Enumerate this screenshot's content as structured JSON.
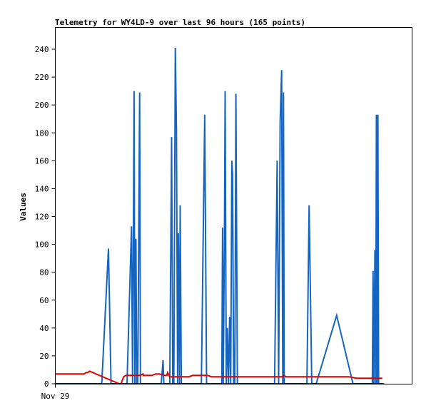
{
  "chart_data": {
    "type": "line",
    "title": "Telemetry for WY4LD-9 over last 96 hours (165 points)",
    "xlabel": "",
    "ylabel": "Values",
    "x_tick_labels": [
      "Nov 29"
    ],
    "y_ticks": [
      0,
      20,
      40,
      60,
      80,
      100,
      120,
      140,
      160,
      180,
      200,
      220,
      240
    ],
    "xlim": [
      0,
      96
    ],
    "ylim": [
      0,
      255
    ],
    "grid": false,
    "legend": "none",
    "series": [
      {
        "color": "#1565c0",
        "x": [
          0,
          12.5,
          14.3,
          15.0,
          15.3,
          16.4,
          19.3,
          20.5,
          20.8,
          21.0,
          21.2,
          21.4,
          21.7,
          21.9,
          22.2,
          22.7,
          22.9,
          23.2,
          23.6,
          28.5,
          28.8,
          29.0,
          29.2,
          30.8,
          31.3,
          31.6,
          31.9,
          32.3,
          32.6,
          32.9,
          33.1,
          33.4,
          33.6,
          33.9,
          34.0,
          34.2,
          34.5,
          34.9,
          39.3,
          40.2,
          40.7,
          41.1,
          41.4,
          41.7,
          42.1,
          44.8,
          45.0,
          45.2,
          45.5,
          45.7,
          46.0,
          46.3,
          46.6,
          46.9,
          47.2,
          47.5,
          47.7,
          48.0,
          48.3,
          48.6,
          49.0,
          49.3,
          49.6,
          49.9,
          50.3,
          50.6,
          51.0,
          59.0,
          59.7,
          60.1,
          60.5,
          60.9,
          61.2,
          61.4,
          61.6,
          62.0,
          62.3,
          62.6,
          62.9,
          63.3,
          67.7,
          68.3,
          69.0,
          69.6,
          70.2,
          75.7,
          80.1,
          85.0,
          85.3,
          85.5,
          85.7,
          86.0,
          86.2,
          86.4,
          86.6,
          86.8,
          87.0,
          87.3,
          87.6,
          87.8,
          88.1
        ],
        "values": [
          0,
          0,
          97,
          0,
          0,
          0,
          0,
          113,
          0,
          104,
          210,
          0,
          104,
          0,
          0,
          209,
          0,
          0,
          0,
          0,
          10,
          17,
          0,
          0,
          177,
          0,
          0,
          241,
          181,
          0,
          108,
          0,
          128,
          0,
          0,
          0,
          0,
          0,
          0,
          193,
          0,
          0,
          0,
          0,
          0,
          0,
          112,
          0,
          104,
          210,
          0,
          40,
          0,
          48,
          0,
          160,
          150,
          0,
          0,
          208,
          0,
          0,
          0,
          0,
          0,
          0,
          0,
          0,
          160,
          0,
          188,
          225,
          0,
          209,
          0,
          0,
          0,
          0,
          0,
          0,
          0,
          128,
          0,
          0,
          0,
          49,
          0,
          0,
          0,
          81,
          0,
          96,
          0,
          193,
          0,
          193,
          0,
          0,
          0,
          0,
          0
        ]
      },
      {
        "color": "#e00000",
        "x": [
          0,
          7.3,
          7.7,
          8.3,
          8.7,
          9.2,
          17.2,
          17.7,
          18.1,
          18.4,
          19.0,
          22.0,
          22.9,
          23.6,
          23.7,
          24.2,
          26.0,
          27.0,
          28.0,
          29.5,
          30.0,
          30.2,
          30.4,
          30.6,
          30.8,
          31.0,
          32.0,
          34.0,
          36.0,
          37.0,
          37.3,
          38.0,
          40.0,
          41.0,
          42.0,
          44.0,
          46.0,
          48.0,
          50.0,
          52.0,
          55.0,
          58.0,
          60.0,
          61.0,
          61.6,
          62.0,
          63.0,
          66.0,
          70.0,
          73.0,
          75.0,
          77.0,
          79.0,
          81.0,
          82.0,
          83.0,
          84.0,
          86.0,
          88.0
        ],
        "values": [
          7,
          7,
          7,
          8,
          8,
          9,
          0,
          0,
          3,
          5,
          6,
          6,
          6,
          7,
          6,
          6,
          6,
          7,
          7,
          6,
          6,
          8,
          7,
          6,
          5,
          5,
          5,
          5,
          5,
          6,
          6,
          6,
          6,
          6,
          5,
          5,
          5,
          5,
          5,
          5,
          5,
          5,
          5,
          5,
          6,
          5,
          5,
          5,
          5,
          5,
          5,
          5,
          5,
          4,
          4,
          4,
          4,
          4,
          4
        ]
      },
      {
        "color": "#000000",
        "x": [
          0,
          88.5
        ],
        "values": [
          0,
          0
        ]
      }
    ]
  }
}
